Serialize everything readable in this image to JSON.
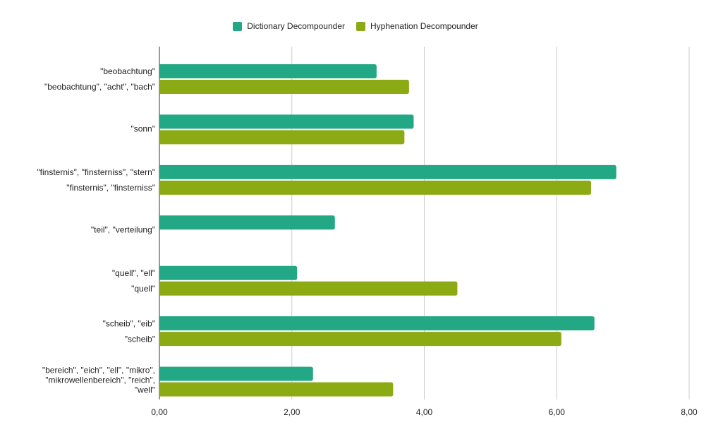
{
  "legend": [
    {
      "name": "Dictionary Decompounder",
      "color": "#22a884"
    },
    {
      "name": "Hyphenation Decompounder",
      "color": "#8caa14"
    }
  ],
  "chart_data": {
    "type": "bar",
    "orientation": "horizontal",
    "title": "",
    "xlabel": "",
    "ylabel": "",
    "xlim": [
      0,
      8
    ],
    "x_ticks": [
      "0,00",
      "2,00",
      "4,00",
      "6,00",
      "8,00"
    ],
    "grid": "vertical",
    "legend_position": "top",
    "groups": [
      {
        "labels": [
          "\"beobachtung\"",
          "\"beobachtung\", \"acht\", \"bach\""
        ],
        "dictionary": 3.28,
        "hyphenation": 3.77
      },
      {
        "labels": [
          "\"sonn\""
        ],
        "dictionary": 3.84,
        "hyphenation": 3.7
      },
      {
        "labels": [
          "\"finsternis\", \"finsterniss\", \"stern\"",
          "\"finsternis\", \"finsterniss\""
        ],
        "dictionary": 6.9,
        "hyphenation": 6.52
      },
      {
        "labels": [
          "\"teil\", \"verteilung\""
        ],
        "dictionary": 2.65,
        "hyphenation": null
      },
      {
        "labels": [
          "\"quell\", \"ell\"",
          "\"quell\""
        ],
        "dictionary": 2.08,
        "hyphenation": 4.5
      },
      {
        "labels": [
          "\"scheib\", \"eib\"",
          "\"scheib\""
        ],
        "dictionary": 6.57,
        "hyphenation": 6.07
      },
      {
        "labels": [
          "\"bereich\", \"eich\", \"ell\", \"mikro\",",
          "\"mikrowellenbereich\", \"reich\",",
          "\"well\""
        ],
        "dictionary": 2.32,
        "hyphenation": 3.53
      }
    ]
  }
}
